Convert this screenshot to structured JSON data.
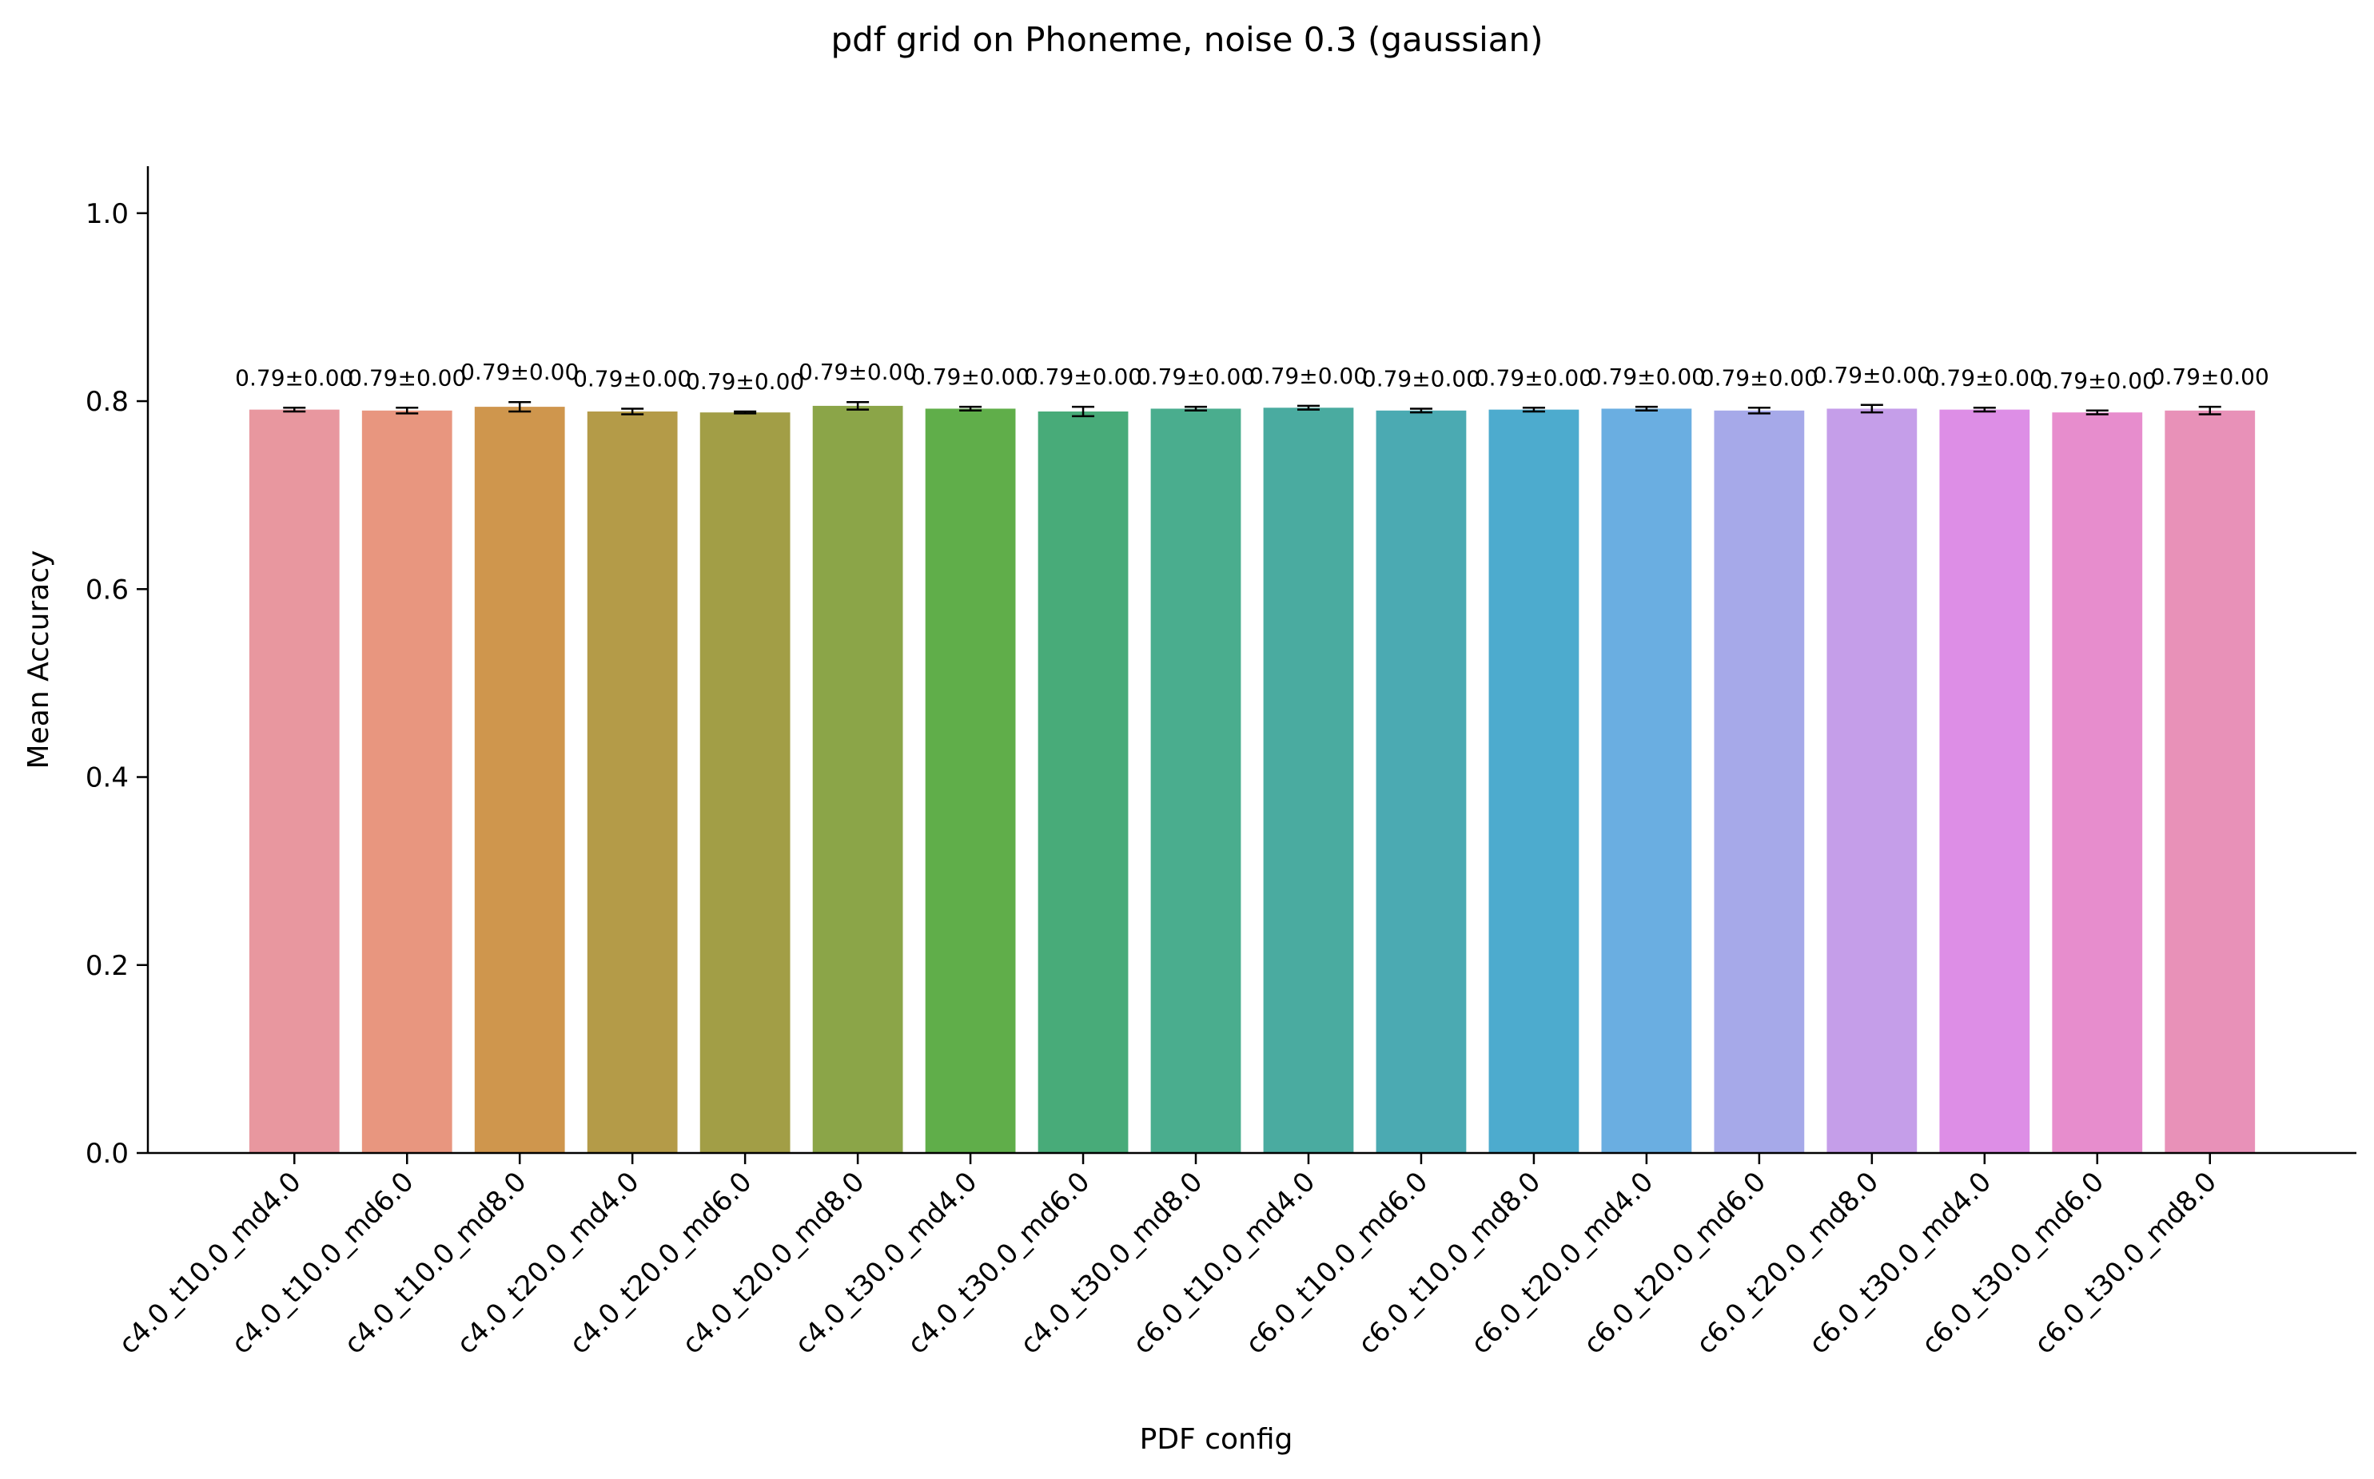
{
  "chart_data": {
    "type": "bar",
    "title": "pdf grid on Phoneme, noise 0.3 (gaussian)",
    "xlabel": "PDF config",
    "ylabel": "Mean Accuracy",
    "ylim": [
      0,
      1.05
    ],
    "yticks": [
      0.0,
      0.2,
      0.4,
      0.6,
      0.8,
      1.0
    ],
    "ytick_labels": [
      "0.0",
      "0.2",
      "0.4",
      "0.6",
      "0.8",
      "1.0"
    ],
    "grid": false,
    "categories": [
      "c4.0_t10.0_md4.0",
      "c4.0_t10.0_md6.0",
      "c4.0_t10.0_md8.0",
      "c4.0_t20.0_md4.0",
      "c4.0_t20.0_md6.0",
      "c4.0_t20.0_md8.0",
      "c4.0_t30.0_md4.0",
      "c4.0_t30.0_md6.0",
      "c4.0_t30.0_md8.0",
      "c6.0_t10.0_md4.0",
      "c6.0_t10.0_md6.0",
      "c6.0_t10.0_md8.0",
      "c6.0_t20.0_md4.0",
      "c6.0_t20.0_md6.0",
      "c6.0_t20.0_md8.0",
      "c6.0_t30.0_md4.0",
      "c6.0_t30.0_md6.0",
      "c6.0_t30.0_md8.0"
    ],
    "values": [
      0.791,
      0.79,
      0.794,
      0.789,
      0.788,
      0.795,
      0.792,
      0.789,
      0.792,
      0.793,
      0.79,
      0.791,
      0.792,
      0.79,
      0.792,
      0.791,
      0.788,
      0.79
    ],
    "errors": [
      0.002,
      0.003,
      0.005,
      0.003,
      0.001,
      0.004,
      0.002,
      0.005,
      0.002,
      0.002,
      0.002,
      0.002,
      0.002,
      0.003,
      0.004,
      0.002,
      0.002,
      0.004
    ],
    "labels": [
      "0.79±0.00",
      "0.79±0.00",
      "0.79±0.00",
      "0.79±0.00",
      "0.79±0.00",
      "0.79±0.00",
      "0.79±0.00",
      "0.79±0.00",
      "0.79±0.00",
      "0.79±0.00",
      "0.79±0.00",
      "0.79±0.00",
      "0.79±0.00",
      "0.79±0.00",
      "0.79±0.00",
      "0.79±0.00",
      "0.79±0.00",
      "0.79±0.00"
    ],
    "colors": [
      "#e8979f",
      "#e8967f",
      "#cf964d",
      "#b49b48",
      "#a29e46",
      "#8ba548",
      "#60ae4a",
      "#48ab79",
      "#4aad8e",
      "#4aaba0",
      "#4baab2",
      "#4dabce",
      "#6aaee1",
      "#a6a9e9",
      "#c59ee9",
      "#dd8ee6",
      "#e78dcd",
      "#e891b8"
    ]
  }
}
